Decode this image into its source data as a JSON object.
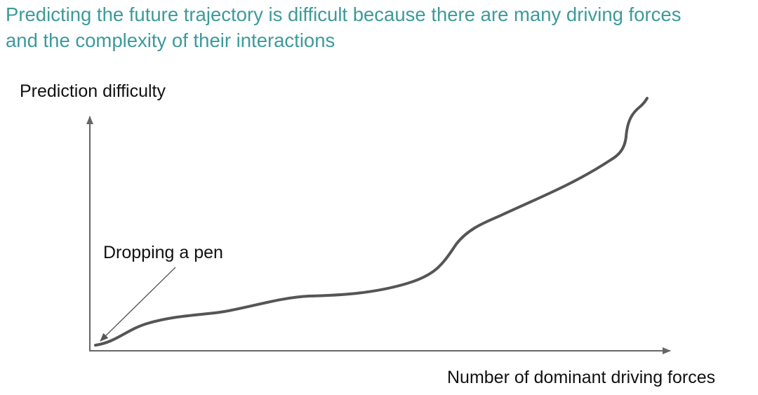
{
  "title": {
    "line1": "Predicting the future trajectory is difficult because there are many driving forces",
    "line2": "and the complexity of their interactions"
  },
  "diagram": {
    "y_axis_label": "Prediction difficulty",
    "x_axis_label": "Number of dominant driving forces",
    "annotation": "Dropping a pen",
    "colors": {
      "title": "#3d9a9b",
      "curve": "#555555",
      "axes": "#666666",
      "text": "#111111"
    }
  }
}
